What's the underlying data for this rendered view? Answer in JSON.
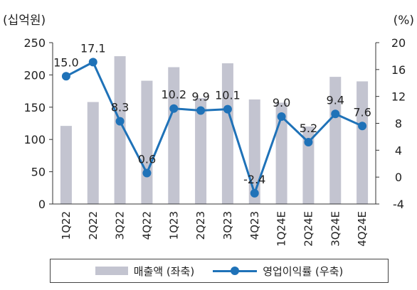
{
  "chart_data": {
    "type": "bar",
    "categories": [
      "1Q22",
      "2Q22",
      "3Q22",
      "4Q22",
      "1Q23",
      "2Q23",
      "3Q23",
      "4Q23",
      "1Q24E",
      "2Q24E",
      "3Q24E",
      "4Q24E"
    ],
    "left_axis": {
      "unit_label": "(십억원)",
      "ylim": [
        0,
        250
      ],
      "ticks": [
        0,
        50,
        100,
        150,
        200,
        250
      ]
    },
    "right_axis": {
      "unit_label": "(%)",
      "ylim": [
        -4,
        20
      ],
      "ticks": [
        -4,
        0,
        4,
        8,
        12,
        16,
        20
      ]
    },
    "series": [
      {
        "name": "매출액 (좌축)",
        "type": "bar",
        "axis": "left",
        "color": "#c3c4d0",
        "values": [
          121,
          158,
          229,
          191,
          212,
          164,
          218,
          162,
          157,
          120,
          197,
          190
        ]
      },
      {
        "name": "영업이익률 (우축)",
        "type": "line",
        "axis": "right",
        "color": "#1f72b8",
        "values": [
          15.0,
          17.1,
          8.3,
          0.6,
          10.2,
          9.9,
          10.1,
          -2.4,
          9.0,
          5.2,
          9.4,
          7.6
        ],
        "labels": [
          "15.0",
          "17.1",
          "8.3",
          "0.6",
          "10.2",
          "9.9",
          "10.1",
          "-2.4",
          "9.0",
          "5.2",
          "9.4",
          "7.6"
        ]
      }
    ],
    "grid": false,
    "legend_position": "bottom"
  }
}
